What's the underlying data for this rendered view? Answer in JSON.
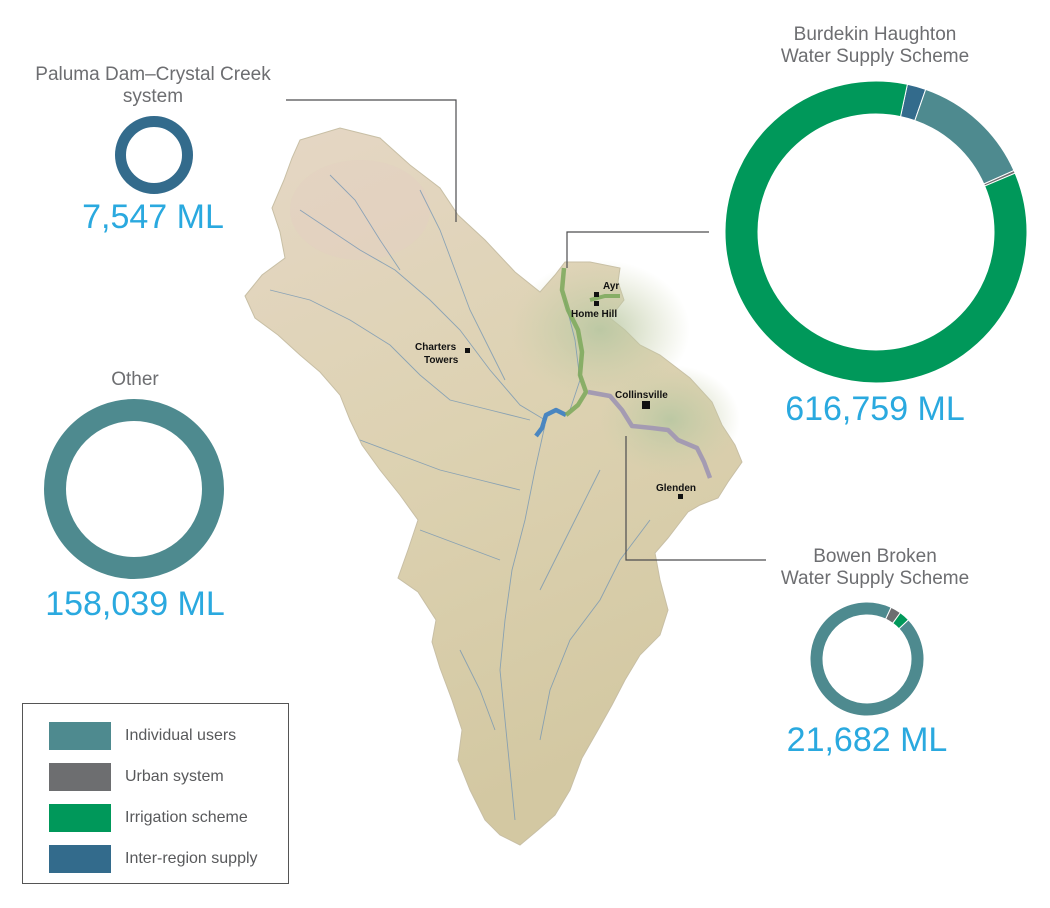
{
  "colors": {
    "individual_users": "#4e8a8f",
    "urban_system": "#6d6e70",
    "irrigation_scheme": "#00985a",
    "inter_region_supply": "#336b8c",
    "value_text": "#2aa9df",
    "title_text": "#6d6e71"
  },
  "legend": {
    "items": [
      {
        "label": "Individual users",
        "color": "#4e8a8f"
      },
      {
        "label": "Urban system",
        "color": "#6d6e70"
      },
      {
        "label": "Irrigation scheme",
        "color": "#00985a"
      },
      {
        "label": "Inter-region supply",
        "color": "#336b8c"
      }
    ]
  },
  "map": {
    "towns": [
      {
        "lines": [
          "Ayr"
        ]
      },
      {
        "lines": [
          "Home Hill"
        ]
      },
      {
        "lines": [
          "Charters",
          "Towers"
        ]
      },
      {
        "lines": [
          "Collinsville"
        ]
      },
      {
        "lines": [
          "Glenden"
        ]
      }
    ]
  },
  "chart_data": [
    {
      "type": "pie",
      "title_lines": [
        "Paluma Dam–Crystal Creek",
        "system"
      ],
      "total_label": "7,547 ML",
      "total_ml": 7547,
      "categories": [
        "Inter-region supply"
      ],
      "values": [
        1.0
      ]
    },
    {
      "type": "pie",
      "title_lines": [
        "Burdekin Haughton",
        "Water Supply Scheme"
      ],
      "total_label": "616,759 ML",
      "total_ml": 616759,
      "categories": [
        "Inter-region supply",
        "Individual users",
        "Urban system",
        "Irrigation scheme"
      ],
      "values": [
        0.02,
        0.13,
        0.003,
        0.847
      ]
    },
    {
      "type": "pie",
      "title_lines": [
        "Other"
      ],
      "total_label": "158,039 ML",
      "total_ml": 158039,
      "categories": [
        "Individual users"
      ],
      "values": [
        1.0
      ]
    },
    {
      "type": "pie",
      "title_lines": [
        "Bowen Broken",
        "Water Supply Scheme"
      ],
      "total_label": "21,682 ML",
      "total_ml": 21682,
      "categories": [
        "Urban system",
        "Irrigation scheme",
        "Individual users"
      ],
      "values": [
        0.03,
        0.03,
        0.94
      ]
    }
  ]
}
